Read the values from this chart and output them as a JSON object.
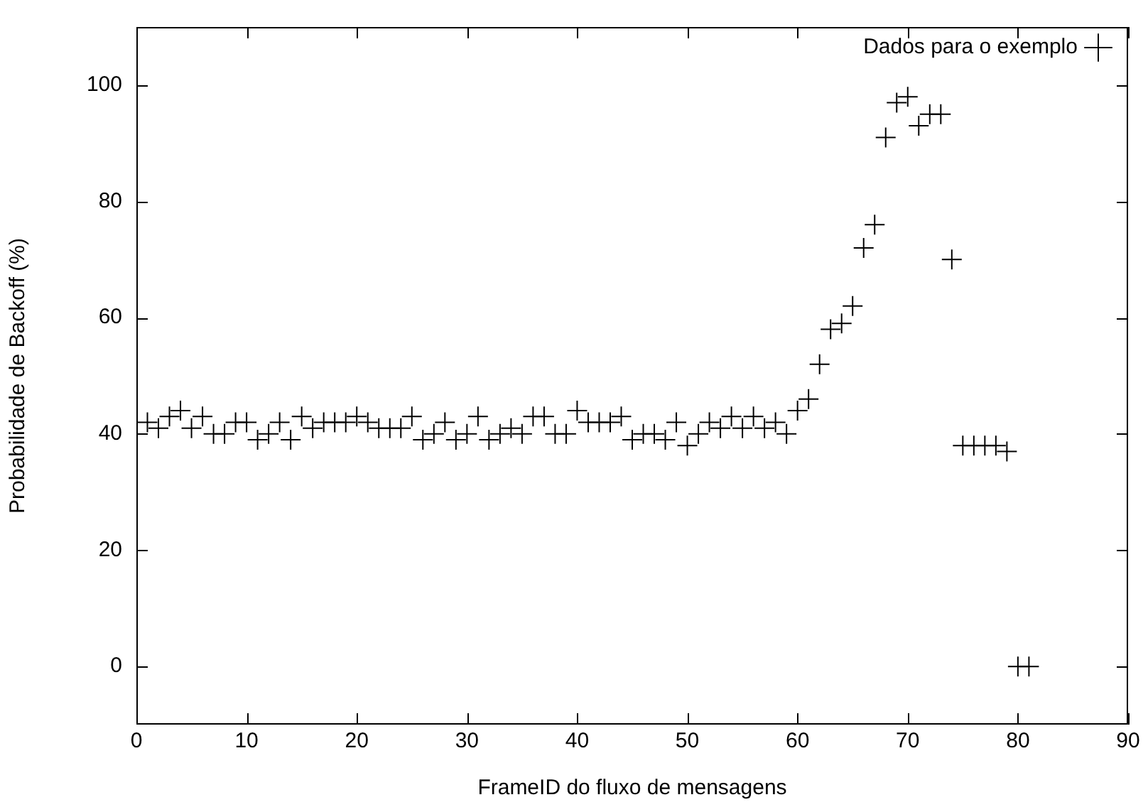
{
  "chart_data": {
    "type": "scatter",
    "xlabel": "FrameID do fluxo de mensagens",
    "ylabel": "Probabilidade de Backoff (%)",
    "xlim": [
      0,
      90
    ],
    "xticks": [
      0,
      10,
      20,
      30,
      40,
      50,
      60,
      70,
      80,
      90
    ],
    "ylim": [
      -10,
      110
    ],
    "yticks": [
      0,
      20,
      40,
      60,
      80,
      100
    ],
    "grid": false,
    "legend": "top right",
    "marker": "cross",
    "series": [
      {
        "name": "Dados para o exemplo",
        "color": "#000000",
        "x": [
          1,
          2,
          3,
          4,
          5,
          6,
          7,
          8,
          9,
          10,
          11,
          12,
          13,
          14,
          15,
          16,
          17,
          18,
          19,
          20,
          21,
          22,
          23,
          24,
          25,
          26,
          27,
          28,
          29,
          30,
          31,
          32,
          33,
          34,
          35,
          36,
          37,
          38,
          39,
          40,
          41,
          42,
          43,
          44,
          45,
          46,
          47,
          48,
          49,
          50,
          51,
          52,
          53,
          54,
          55,
          56,
          57,
          58,
          59,
          60,
          61,
          62,
          63,
          64,
          65,
          66,
          67,
          68,
          69,
          70,
          71,
          72,
          73,
          74,
          75,
          76,
          77,
          78,
          79,
          80,
          81
        ],
        "values": [
          42,
          41,
          43,
          44,
          41,
          43,
          40,
          40,
          42,
          42,
          39,
          40,
          42,
          39,
          43,
          41,
          42,
          42,
          42,
          43,
          42,
          41,
          41,
          41,
          43,
          39,
          40,
          42,
          39,
          40,
          43,
          39,
          40,
          41,
          40,
          43,
          43,
          40,
          40,
          44,
          42,
          42,
          42,
          43,
          39,
          40,
          40,
          39,
          42,
          38,
          40,
          42,
          41,
          43,
          41,
          43,
          41,
          42,
          40,
          44,
          46,
          52,
          58,
          59,
          62,
          72,
          76,
          91,
          97,
          98,
          93,
          95,
          95,
          70,
          38,
          38,
          38,
          38,
          37,
          0,
          0
        ]
      }
    ]
  }
}
